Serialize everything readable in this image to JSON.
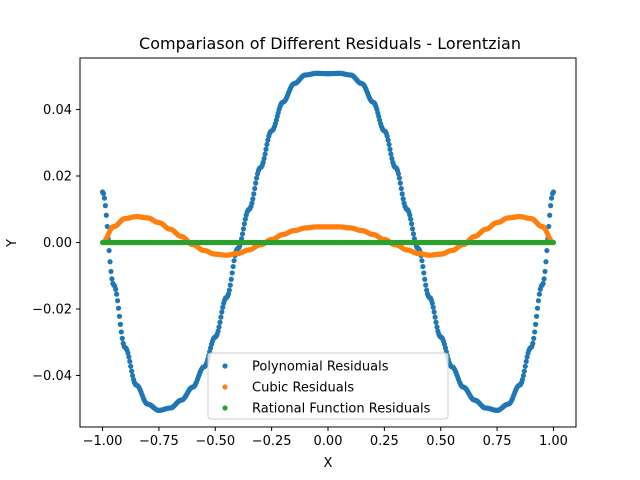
{
  "chart_data": {
    "type": "scatter",
    "title": "Compariason of Different Residuals - Lorentzian",
    "xlabel": "X",
    "ylabel": "Y",
    "xlim": [
      -1.1,
      1.1
    ],
    "ylim": [
      -0.0555,
      0.0555
    ],
    "xticks": [
      -1.0,
      -0.75,
      -0.5,
      -0.25,
      0.0,
      0.25,
      0.5,
      0.75,
      1.0
    ],
    "xtick_labels": [
      "−1.00",
      "−0.75",
      "−0.50",
      "−0.25",
      "0.00",
      "0.25",
      "0.50",
      "0.75",
      "1.00"
    ],
    "yticks": [
      -0.04,
      -0.02,
      0.0,
      0.02,
      0.04
    ],
    "ytick_labels": [
      "−0.04",
      "−0.02",
      "0.00",
      "0.02",
      "0.04"
    ],
    "grid": false,
    "legend_position": "lower-center",
    "x": [
      -1.0,
      -0.95,
      -0.9,
      -0.85,
      -0.8,
      -0.75,
      -0.7,
      -0.65,
      -0.6,
      -0.55,
      -0.5,
      -0.45,
      -0.4,
      -0.35,
      -0.3,
      -0.25,
      -0.2,
      -0.15,
      -0.1,
      -0.05,
      0.0,
      0.05,
      0.1,
      0.15,
      0.2,
      0.25,
      0.3,
      0.35,
      0.4,
      0.45,
      0.5,
      0.55,
      0.6,
      0.65,
      0.7,
      0.75,
      0.8,
      0.85,
      0.9,
      0.95,
      1.0
    ],
    "series": [
      {
        "name": "Polynomial Residuals",
        "color": "#1f77b4",
        "values": [
          0.0152,
          -0.0128,
          -0.0316,
          -0.0429,
          -0.0486,
          -0.0505,
          -0.0498,
          -0.0474,
          -0.0435,
          -0.0374,
          -0.0284,
          -0.0165,
          -0.0018,
          0.01,
          0.0225,
          0.0336,
          0.0422,
          0.0478,
          0.0504,
          0.0509,
          0.0508,
          0.0509,
          0.0504,
          0.0478,
          0.0422,
          0.0336,
          0.0225,
          0.01,
          -0.0018,
          -0.0165,
          -0.0284,
          -0.0374,
          -0.0435,
          -0.0474,
          -0.0498,
          -0.0505,
          -0.0486,
          -0.0429,
          -0.0316,
          -0.0128,
          0.0152
        ]
      },
      {
        "name": "Cubic Residuals",
        "color": "#ff7f0e",
        "values": [
          0.0,
          0.0048,
          0.0072,
          0.0078,
          0.0074,
          0.006,
          0.004,
          0.0018,
          -0.0006,
          -0.0024,
          -0.0035,
          -0.0038,
          -0.0033,
          -0.0022,
          -0.0007,
          0.0009,
          0.0024,
          0.0036,
          0.0044,
          0.0047,
          0.0047,
          0.0047,
          0.0044,
          0.0036,
          0.0024,
          0.0009,
          -0.0007,
          -0.0022,
          -0.0033,
          -0.0038,
          -0.0035,
          -0.0024,
          -0.0006,
          0.0018,
          0.004,
          0.006,
          0.0074,
          0.0078,
          0.0072,
          0.0048,
          0.0
        ]
      },
      {
        "name": "Rational Function Residuals",
        "color": "#2ca02c",
        "values": [
          0.0,
          0.0,
          0.0,
          0.0,
          0.0,
          0.0,
          0.0,
          0.0,
          0.0,
          0.0,
          0.0,
          0.0,
          0.0,
          0.0,
          0.0,
          0.0,
          0.0,
          0.0,
          0.0,
          0.0,
          0.0,
          0.0,
          0.0,
          0.0,
          0.0,
          0.0,
          0.0,
          0.0,
          0.0,
          0.0,
          0.0,
          0.0,
          0.0,
          0.0,
          0.0,
          0.0,
          0.0,
          0.0,
          0.0,
          0.0,
          0.0
        ]
      }
    ]
  }
}
